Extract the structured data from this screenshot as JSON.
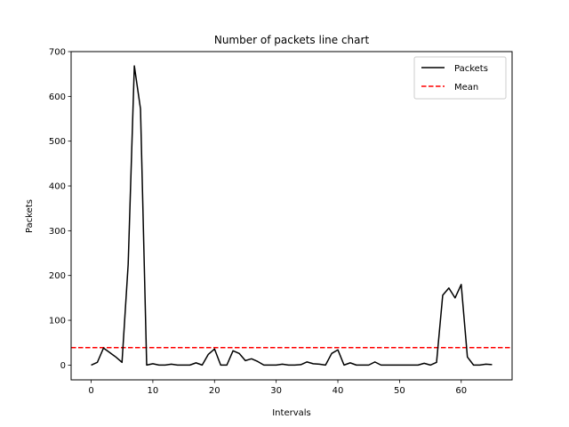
{
  "chart_data": {
    "type": "line",
    "title": "Number of packets line chart",
    "xlabel": "Intervals",
    "ylabel": "Packets",
    "xlim": [
      -3.25,
      68.25
    ],
    "ylim": [
      -33,
      700
    ],
    "xticks": [
      0,
      10,
      20,
      30,
      40,
      50,
      60
    ],
    "yticks": [
      0,
      100,
      200,
      300,
      400,
      500,
      600,
      700
    ],
    "grid": false,
    "legend_position": "top-right",
    "series": [
      {
        "name": "Packets",
        "color": "#000000",
        "linestyle": "solid",
        "x": [
          0,
          1,
          2,
          3,
          4,
          5,
          6,
          7,
          8,
          9,
          10,
          11,
          12,
          13,
          14,
          15,
          16,
          17,
          18,
          19,
          20,
          21,
          22,
          23,
          24,
          25,
          26,
          27,
          28,
          29,
          30,
          31,
          32,
          33,
          34,
          35,
          36,
          37,
          38,
          39,
          40,
          41,
          42,
          43,
          44,
          45,
          46,
          47,
          48,
          49,
          50,
          51,
          52,
          53,
          54,
          55,
          56,
          57,
          58,
          59,
          60,
          61,
          62,
          63,
          64,
          65
        ],
        "values": [
          0,
          6,
          38,
          28,
          18,
          6,
          225,
          668,
          572,
          0,
          3,
          0,
          0,
          2,
          0,
          0,
          0,
          5,
          0,
          24,
          36,
          0,
          0,
          32,
          26,
          10,
          14,
          8,
          0,
          0,
          0,
          2,
          0,
          0,
          1,
          7,
          3,
          2,
          0,
          26,
          34,
          0,
          5,
          0,
          0,
          0,
          7,
          0,
          0,
          0,
          0,
          0,
          0,
          0,
          4,
          0,
          6,
          156,
          172,
          150,
          180,
          18,
          0,
          0,
          2,
          1
        ]
      },
      {
        "name": "Mean",
        "color": "#ff0000",
        "linestyle": "dashed",
        "value": 39
      }
    ]
  }
}
